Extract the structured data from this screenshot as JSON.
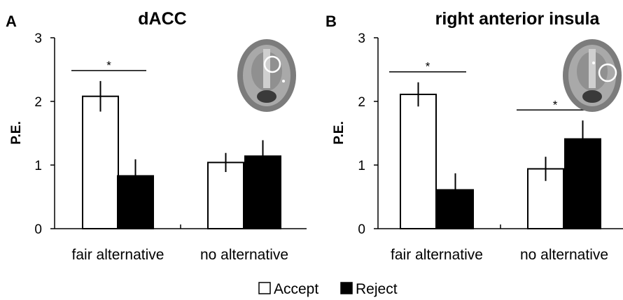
{
  "chart_data": [
    {
      "panel": "A",
      "title": "dACC",
      "type": "bar",
      "ylabel": "P.E.",
      "ylim": [
        0,
        3
      ],
      "yticks": [
        "0",
        "1",
        "2",
        "3"
      ],
      "categories": [
        "fair alternative",
        "no alternative"
      ],
      "series": [
        {
          "name": "Accept",
          "values": [
            2.08,
            1.04
          ],
          "errors": [
            0.24,
            0.15
          ]
        },
        {
          "name": "Reject",
          "values": [
            0.83,
            1.14
          ],
          "errors": [
            0.26,
            0.25
          ]
        }
      ],
      "significance": [
        {
          "category": "fair alternative",
          "label": "*"
        }
      ]
    },
    {
      "panel": "B",
      "title": "right anterior insula",
      "type": "bar",
      "ylabel": "P.E.",
      "ylim": [
        0,
        3
      ],
      "yticks": [
        "0",
        "1",
        "2",
        "3"
      ],
      "categories": [
        "fair alternative",
        "no alternative"
      ],
      "series": [
        {
          "name": "Accept",
          "values": [
            2.11,
            0.94
          ],
          "errors": [
            0.19,
            0.19
          ]
        },
        {
          "name": "Reject",
          "values": [
            0.61,
            1.41
          ],
          "errors": [
            0.26,
            0.29
          ]
        }
      ],
      "significance": [
        {
          "category": "fair alternative",
          "label": "*"
        },
        {
          "category": "no alternative",
          "label": "*"
        }
      ]
    }
  ],
  "legend": {
    "items": [
      {
        "label": "Accept",
        "color": "#ffffff"
      },
      {
        "label": "Reject",
        "color": "#000000"
      }
    ]
  },
  "colors": {
    "accept": "#ffffff",
    "reject": "#000000",
    "axis": "#000000",
    "brain": "#8a8a8a"
  }
}
